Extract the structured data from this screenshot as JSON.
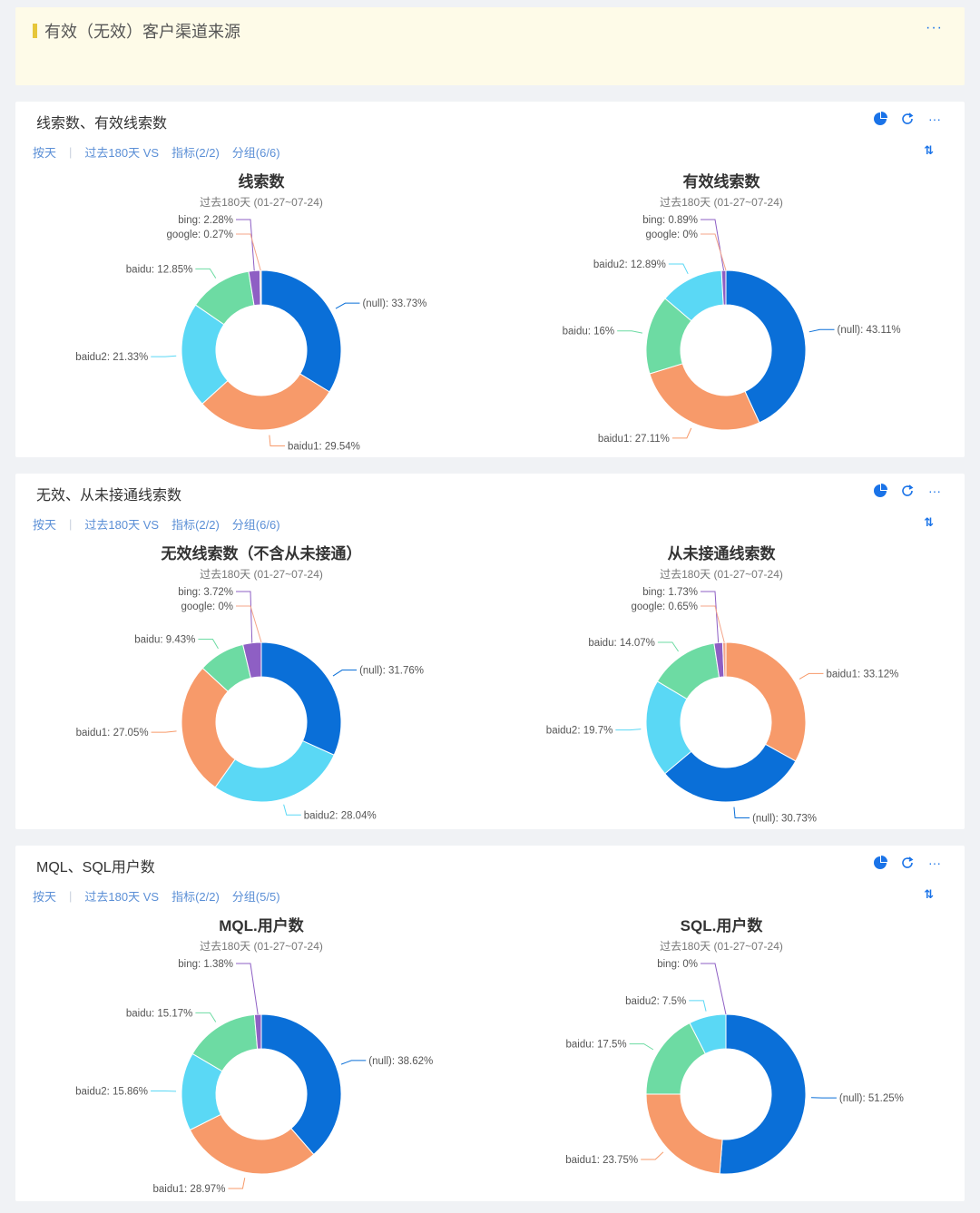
{
  "header": {
    "title": "有效（无效）客户渠道来源",
    "more": "···"
  },
  "cards": [
    {
      "title": "线索数、有效线索数",
      "filters": [
        "按天",
        "过去180天 VS",
        "指标(2/2)",
        "分组(6/6)"
      ],
      "charts": [
        {
          "title": "线索数",
          "subtitle": "过去180天 (01-27~07-24)"
        },
        {
          "title": "有效线索数",
          "subtitle": "过去180天 (01-27~07-24)"
        }
      ]
    },
    {
      "title": "无效、从未接通线索数",
      "filters": [
        "按天",
        "过去180天 VS",
        "指标(2/2)",
        "分组(6/6)"
      ],
      "charts": [
        {
          "title": "无效线索数（不含从未接通）",
          "subtitle": "过去180天 (01-27~07-24)"
        },
        {
          "title": "从未接通线索数",
          "subtitle": "过去180天 (01-27~07-24)"
        }
      ]
    },
    {
      "title": "MQL、SQL用户数",
      "filters": [
        "按天",
        "过去180天 VS",
        "指标(2/2)",
        "分组(5/5)"
      ],
      "charts": [
        {
          "title": "MQL.用户数",
          "subtitle": "过去180天 (01-27~07-24)"
        },
        {
          "title": "SQL.用户数",
          "subtitle": "过去180天 (01-27~07-24)"
        }
      ]
    }
  ],
  "colors": {
    "(null)": "#0a6fd8",
    "baidu1": "#f79a6a",
    "baidu2": "#5ad8f5",
    "baidu": "#6ddba3",
    "bing": "#8e5fc4",
    "google": "#f4a58a"
  },
  "chart_data": [
    {
      "type": "pie",
      "title": "线索数",
      "donut": true,
      "slices": [
        {
          "name": "(null)",
          "value": 33.73
        },
        {
          "name": "baidu1",
          "value": 29.54
        },
        {
          "name": "baidu2",
          "value": 21.33
        },
        {
          "name": "baidu",
          "value": 12.85
        },
        {
          "name": "bing",
          "value": 2.28
        },
        {
          "name": "google",
          "value": 0.27
        }
      ]
    },
    {
      "type": "pie",
      "title": "有效线索数",
      "donut": true,
      "slices": [
        {
          "name": "(null)",
          "value": 43.11
        },
        {
          "name": "baidu1",
          "value": 27.11
        },
        {
          "name": "baidu",
          "value": 16
        },
        {
          "name": "baidu2",
          "value": 12.89
        },
        {
          "name": "bing",
          "value": 0.89
        },
        {
          "name": "google",
          "value": 0
        }
      ]
    },
    {
      "type": "pie",
      "title": "无效线索数（不含从未接通）",
      "donut": true,
      "slices": [
        {
          "name": "(null)",
          "value": 31.76
        },
        {
          "name": "baidu2",
          "value": 28.04
        },
        {
          "name": "baidu1",
          "value": 27.05
        },
        {
          "name": "baidu",
          "value": 9.43
        },
        {
          "name": "bing",
          "value": 3.72
        },
        {
          "name": "google",
          "value": 0
        }
      ]
    },
    {
      "type": "pie",
      "title": "从未接通线索数",
      "donut": true,
      "slices": [
        {
          "name": "baidu1",
          "value": 33.12
        },
        {
          "name": "(null)",
          "value": 30.73
        },
        {
          "name": "baidu2",
          "value": 19.7
        },
        {
          "name": "baidu",
          "value": 14.07
        },
        {
          "name": "bing",
          "value": 1.73
        },
        {
          "name": "google",
          "value": 0.65
        }
      ]
    },
    {
      "type": "pie",
      "title": "MQL.用户数",
      "donut": true,
      "slices": [
        {
          "name": "(null)",
          "value": 38.62
        },
        {
          "name": "baidu1",
          "value": 28.97
        },
        {
          "name": "baidu2",
          "value": 15.86
        },
        {
          "name": "baidu",
          "value": 15.17
        },
        {
          "name": "bing",
          "value": 1.38
        }
      ]
    },
    {
      "type": "pie",
      "title": "SQL.用户数",
      "donut": true,
      "slices": [
        {
          "name": "(null)",
          "value": 51.25
        },
        {
          "name": "baidu1",
          "value": 23.75
        },
        {
          "name": "baidu",
          "value": 17.5
        },
        {
          "name": "baidu2",
          "value": 7.5
        },
        {
          "name": "bing",
          "value": 0
        }
      ]
    }
  ]
}
